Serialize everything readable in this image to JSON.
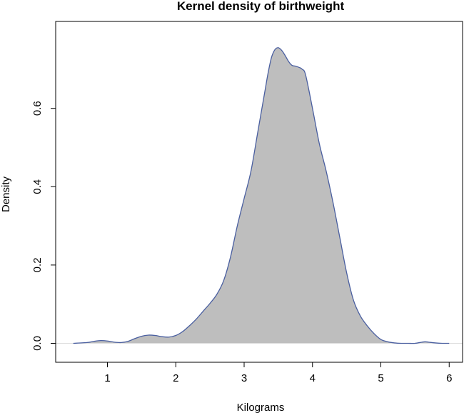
{
  "chart_data": {
    "type": "area",
    "title": "Kernel density of birthweight",
    "xlabel": "Kilograms",
    "ylabel": "Density",
    "xlim": [
      0.5,
      6.0
    ],
    "ylim": [
      0.0,
      0.76
    ],
    "xticks": [
      1,
      2,
      3,
      4,
      5,
      6
    ],
    "xtick_labels": [
      "1",
      "2",
      "3",
      "4",
      "5",
      "6"
    ],
    "yticks": [
      0.0,
      0.2,
      0.4,
      0.6
    ],
    "ytick_labels": [
      "0.0",
      "0.2",
      "0.4",
      "0.6"
    ],
    "grid": false,
    "fill_color": "#bebebe",
    "line_color": "#4a5fa0",
    "baseline_color": "#dddddd",
    "series": [
      {
        "name": "density",
        "x": [
          0.5,
          0.7,
          0.8,
          0.9,
          1.0,
          1.1,
          1.2,
          1.3,
          1.4,
          1.5,
          1.6,
          1.7,
          1.8,
          1.9,
          2.0,
          2.1,
          2.2,
          2.3,
          2.4,
          2.5,
          2.6,
          2.7,
          2.8,
          2.9,
          3.0,
          3.1,
          3.2,
          3.3,
          3.35,
          3.4,
          3.45,
          3.5,
          3.55,
          3.6,
          3.65,
          3.7,
          3.75,
          3.8,
          3.85,
          3.9,
          4.0,
          4.1,
          4.2,
          4.3,
          4.4,
          4.5,
          4.6,
          4.7,
          4.8,
          4.9,
          5.0,
          5.1,
          5.2,
          5.3,
          5.4,
          5.5,
          5.6,
          5.65,
          5.7,
          5.8,
          5.9,
          6.0
        ],
        "y": [
          0.0,
          0.002,
          0.005,
          0.007,
          0.006,
          0.003,
          0.002,
          0.005,
          0.012,
          0.018,
          0.021,
          0.02,
          0.017,
          0.016,
          0.02,
          0.03,
          0.045,
          0.062,
          0.082,
          0.102,
          0.125,
          0.16,
          0.22,
          0.3,
          0.37,
          0.44,
          0.54,
          0.64,
          0.69,
          0.73,
          0.75,
          0.755,
          0.748,
          0.735,
          0.72,
          0.71,
          0.708,
          0.705,
          0.7,
          0.685,
          0.6,
          0.51,
          0.44,
          0.36,
          0.27,
          0.18,
          0.11,
          0.07,
          0.045,
          0.025,
          0.01,
          0.004,
          0.001,
          0.0,
          0.0,
          0.0,
          0.003,
          0.004,
          0.003,
          0.001,
          0.0,
          0.0
        ]
      }
    ]
  }
}
